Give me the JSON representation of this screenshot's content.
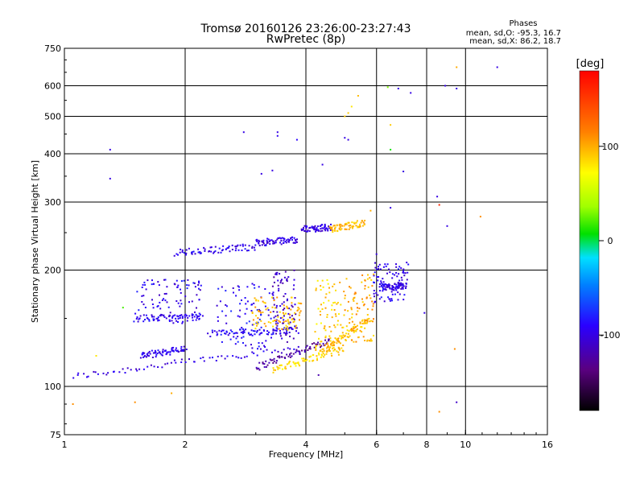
{
  "header": {
    "title": "Tromsø 20160126 23:26:00-23:27:43",
    "subtitle": "RwPretec (8p)"
  },
  "stats": {
    "heading": "Phases",
    "line_o": "mean, sd,O: -95.3, 16.7",
    "line_x": "mean, sd,X: 86.2, 18.7"
  },
  "colorbar": {
    "unit_label": "[deg]",
    "min": -180,
    "max": 180,
    "ticks": [
      {
        "label": "100",
        "value": 100
      },
      {
        "label": "0",
        "value": 0
      },
      {
        "label": "-100",
        "value": -100
      }
    ]
  },
  "chart_data": {
    "type": "scatter",
    "xlabel": "Frequency [MHz]",
    "ylabel": "Stationary phase Virtual Height [km]",
    "x_scale": "log",
    "y_scale": "log",
    "xlim": [
      1,
      16
    ],
    "ylim": [
      75,
      750
    ],
    "x_ticks": [
      {
        "value": 1,
        "label": "1"
      },
      {
        "value": 2,
        "label": "2"
      },
      {
        "value": 4,
        "label": "4"
      },
      {
        "value": 6,
        "label": "6"
      },
      {
        "value": 8,
        "label": "8"
      },
      {
        "value": 10,
        "label": "10"
      },
      {
        "value": 16,
        "label": "16"
      }
    ],
    "y_ticks": [
      {
        "value": 75,
        "label": "75"
      },
      {
        "value": 100,
        "label": "100"
      },
      {
        "value": 200,
        "label": "200"
      },
      {
        "value": 300,
        "label": "300"
      },
      {
        "value": 400,
        "label": "400"
      },
      {
        "value": 500,
        "label": "500"
      },
      {
        "value": 600,
        "label": "600"
      },
      {
        "value": 750,
        "label": "750"
      }
    ],
    "grid_x": [
      2,
      4,
      6,
      8,
      10
    ],
    "grid_y": [
      100,
      200,
      300,
      400,
      500,
      600
    ],
    "grid": true,
    "color_scale": "phase in degrees, -180 (black) to 180 (red)",
    "traces": [
      {
        "f_start": 1.05,
        "f_end": 3.8,
        "h_start": 106,
        "h_end": 126,
        "phase": -100
      },
      {
        "f_start": 3.0,
        "f_end": 4.6,
        "h_start": 112,
        "h_end": 132,
        "phase": -125
      },
      {
        "f_start": 3.3,
        "f_end": 4.9,
        "h_start": 110,
        "h_end": 125,
        "phase": 85
      },
      {
        "f_start": 4.4,
        "f_end": 5.8,
        "h_start": 124,
        "h_end": 150,
        "phase": 95
      },
      {
        "f_start": 1.55,
        "f_end": 2.0,
        "h_start": 120,
        "h_end": 125,
        "phase": -95
      },
      {
        "f_start": 2.3,
        "f_end": 3.8,
        "h_start": 137,
        "h_end": 140,
        "phase": -90
      },
      {
        "f_start": 1.5,
        "f_end": 2.2,
        "h_start": 150,
        "h_end": 151,
        "phase": -95
      },
      {
        "f_start": 1.9,
        "f_end": 3.0,
        "h_start": 222,
        "h_end": 230,
        "phase": -95
      },
      {
        "f_start": 3.0,
        "f_end": 3.8,
        "h_start": 235,
        "h_end": 240,
        "phase": -100
      },
      {
        "f_start": 3.9,
        "f_end": 4.6,
        "h_start": 255,
        "h_end": 258,
        "phase": -100
      },
      {
        "f_start": 4.6,
        "f_end": 5.6,
        "h_start": 255,
        "h_end": 265,
        "phase": 95
      },
      {
        "f_start": 6.2,
        "f_end": 7.1,
        "h_start": 180,
        "h_end": 182,
        "phase": -100
      }
    ],
    "clusters": [
      {
        "f_min": 1.5,
        "f_max": 2.2,
        "h_min": 145,
        "h_max": 190,
        "phase": -95
      },
      {
        "f_min": 2.4,
        "f_max": 3.3,
        "h_min": 125,
        "h_max": 185,
        "phase": -90
      },
      {
        "f_min": 3.3,
        "f_max": 3.8,
        "h_min": 130,
        "h_max": 200,
        "phase": -110
      },
      {
        "f_min": 2.9,
        "f_max": 3.9,
        "h_min": 140,
        "h_max": 170,
        "phase": 95
      },
      {
        "f_min": 4.2,
        "f_max": 5.0,
        "h_min": 120,
        "h_max": 190,
        "phase": 90
      },
      {
        "f_min": 5.0,
        "f_max": 5.9,
        "h_min": 130,
        "h_max": 195,
        "phase": 100
      },
      {
        "f_min": 5.9,
        "f_max": 7.2,
        "h_min": 165,
        "h_max": 210,
        "phase": -95
      }
    ],
    "isolated_points": [
      {
        "f": 1.3,
        "h": 410,
        "phase": -100
      },
      {
        "f": 1.3,
        "h": 345,
        "phase": -100
      },
      {
        "f": 2.8,
        "h": 455,
        "phase": -100
      },
      {
        "f": 3.4,
        "h": 455,
        "phase": -100
      },
      {
        "f": 3.4,
        "h": 445,
        "phase": -95
      },
      {
        "f": 3.8,
        "h": 435,
        "phase": -90
      },
      {
        "f": 3.1,
        "h": 355,
        "phase": -100
      },
      {
        "f": 3.3,
        "h": 362,
        "phase": -100
      },
      {
        "f": 4.4,
        "h": 375,
        "phase": -100
      },
      {
        "f": 5.0,
        "h": 500,
        "phase": 90
      },
      {
        "f": 5.1,
        "h": 510,
        "phase": 90
      },
      {
        "f": 5.2,
        "h": 530,
        "phase": 80
      },
      {
        "f": 5.4,
        "h": 565,
        "phase": 95
      },
      {
        "f": 6.4,
        "h": 595,
        "phase": 30
      },
      {
        "f": 6.8,
        "h": 590,
        "phase": -100
      },
      {
        "f": 7.3,
        "h": 575,
        "phase": -100
      },
      {
        "f": 8.9,
        "h": 600,
        "phase": -100
      },
      {
        "f": 9.5,
        "h": 590,
        "phase": -100
      },
      {
        "f": 12.0,
        "h": 670,
        "phase": -100
      },
      {
        "f": 9.5,
        "h": 670,
        "phase": 100
      },
      {
        "f": 6.5,
        "h": 410,
        "phase": 10
      },
      {
        "f": 7.0,
        "h": 360,
        "phase": -100
      },
      {
        "f": 8.5,
        "h": 310,
        "phase": -100
      },
      {
        "f": 8.6,
        "h": 295,
        "phase": 160
      },
      {
        "f": 10.9,
        "h": 275,
        "phase": 110
      },
      {
        "f": 6.5,
        "h": 475,
        "phase": 90
      },
      {
        "f": 5.0,
        "h": 440,
        "phase": -100
      },
      {
        "f": 5.1,
        "h": 435,
        "phase": -100
      },
      {
        "f": 5.8,
        "h": 285,
        "phase": 100
      },
      {
        "f": 6.5,
        "h": 290,
        "phase": -100
      },
      {
        "f": 9.0,
        "h": 260,
        "phase": -100
      },
      {
        "f": 1.4,
        "h": 160,
        "phase": 20
      },
      {
        "f": 1.2,
        "h": 120,
        "phase": 80
      },
      {
        "f": 1.85,
        "h": 96,
        "phase": 100
      },
      {
        "f": 1.5,
        "h": 91,
        "phase": 110
      },
      {
        "f": 1.05,
        "h": 90,
        "phase": 110
      },
      {
        "f": 4.3,
        "h": 107,
        "phase": -120
      },
      {
        "f": 7.9,
        "h": 155,
        "phase": -100
      },
      {
        "f": 8.6,
        "h": 86,
        "phase": 110
      },
      {
        "f": 9.5,
        "h": 91,
        "phase": -110
      },
      {
        "f": 9.4,
        "h": 125,
        "phase": 110
      },
      {
        "f": 6.0,
        "h": 220,
        "phase": -100
      },
      {
        "f": 5.9,
        "h": 195,
        "phase": 100
      }
    ]
  }
}
